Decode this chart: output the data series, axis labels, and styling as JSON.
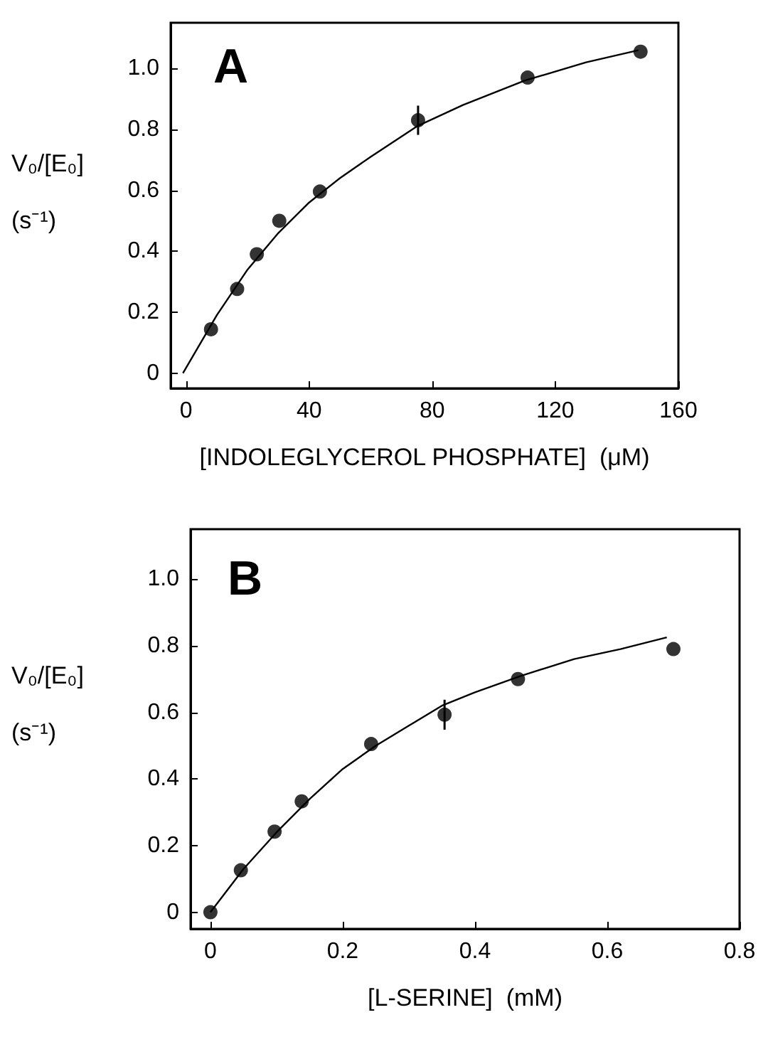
{
  "chart_data": [
    {
      "type": "scatter",
      "annotations": [
        "A"
      ],
      "xlabel": "[INDOLEGLYCEROL PHOSPHATE]  (μM)",
      "ylabel": "V₀/[E₀]  (s⁻¹)",
      "xlim": [
        -5,
        160
      ],
      "ylim": [
        -0.05,
        1.15
      ],
      "xticks": [
        0,
        40,
        80,
        120,
        160
      ],
      "yticks": [
        0,
        0.2,
        0.4,
        0.6,
        0.8,
        {
          "value": 1,
          "label": "1.0"
        }
      ],
      "grid": false,
      "marker": "circle",
      "series": [
        {
          "color": "#000000",
          "x": [
            8.1,
            16.6,
            23,
            30.3,
            43.5,
            75.4,
            111,
            147.7
          ],
          "values": [
            0.144,
            0.276,
            0.39,
            0.5,
            0.596,
            0.83,
            0.97,
            1.055
          ],
          "errors": [
            null,
            null,
            null,
            null,
            null,
            0.048,
            null,
            null
          ]
        },
        {
          "type": "line",
          "color": "#000000",
          "marker": "none",
          "x": [
            -1,
            10,
            20,
            30,
            40,
            50,
            60,
            75,
            90,
            110,
            130,
            147
          ],
          "values": [
            0,
            0.19,
            0.34,
            0.46,
            0.56,
            0.64,
            0.71,
            0.81,
            0.88,
            0.96,
            1.02,
            1.06
          ]
        }
      ]
    },
    {
      "type": "scatter",
      "annotations": [
        "B"
      ],
      "xlabel": "[L-SERINE]  (mM)",
      "ylabel": "V₀/[E₀]  (s⁻¹)",
      "xlim": [
        -0.03,
        0.8
      ],
      "ylim": [
        -0.05,
        1.15
      ],
      "xticks": [
        0,
        0.2,
        0.4,
        0.6,
        0.8
      ],
      "yticks": [
        0,
        0.2,
        0.4,
        0.6,
        0.8,
        {
          "value": 1,
          "label": "1.0"
        }
      ],
      "grid": false,
      "marker": "circle",
      "series": [
        {
          "color": "#000000",
          "x": [
            0,
            0.046,
            0.097,
            0.138,
            0.243,
            0.354,
            0.465,
            0.7
          ],
          "values": [
            0,
            0.126,
            0.242,
            0.333,
            0.505,
            0.593,
            0.7,
            0.79
          ],
          "errors": [
            null,
            null,
            null,
            null,
            null,
            0.045,
            null,
            null
          ]
        },
        {
          "type": "line",
          "color": "#000000",
          "marker": "none",
          "x": [
            0,
            0.05,
            0.1,
            0.15,
            0.2,
            0.25,
            0.3,
            0.35,
            0.4,
            0.47,
            0.55,
            0.62,
            0.69
          ],
          "values": [
            0,
            0.13,
            0.24,
            0.34,
            0.43,
            0.5,
            0.56,
            0.62,
            0.66,
            0.71,
            0.76,
            0.79,
            0.825
          ]
        }
      ]
    }
  ]
}
